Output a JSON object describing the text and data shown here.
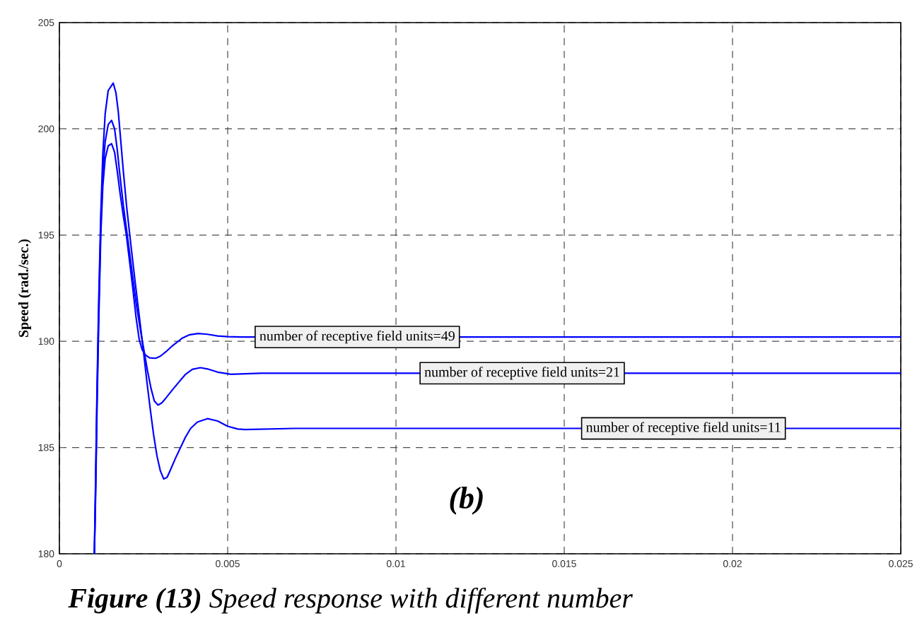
{
  "chart_data": {
    "type": "line",
    "ylabel": "Speed (rad./sec.)",
    "xlim": [
      0,
      0.025
    ],
    "ylim": [
      180,
      205
    ],
    "xticks": [
      0,
      0.005,
      0.01,
      0.015,
      0.02,
      0.025
    ],
    "yticks": [
      180,
      185,
      190,
      195,
      200,
      205
    ],
    "grid": true,
    "series": [
      {
        "color": "#0000ff",
        "x": [
          0.00104,
          0.00108,
          0.00112,
          0.00117,
          0.00123,
          0.00129,
          0.00136,
          0.00145,
          0.00155,
          0.00164,
          0.00172,
          0.0018,
          0.0019,
          0.00199,
          0.00209,
          0.00218,
          0.00228,
          0.00237,
          0.00246,
          0.00256,
          0.00268,
          0.00286,
          0.003,
          0.00316,
          0.00333,
          0.00349,
          0.00365,
          0.00385,
          0.00412,
          0.0044,
          0.0047,
          0.005,
          0.0054,
          0.025
        ],
        "values": [
          180.0,
          183.0,
          187.0,
          191.0,
          195.0,
          197.3,
          198.6,
          199.2,
          199.3,
          198.9,
          198.0,
          197.0,
          195.9,
          195.0,
          193.7,
          192.5,
          191.1,
          190.1,
          189.6,
          189.35,
          189.22,
          189.2,
          189.3,
          189.5,
          189.75,
          189.95,
          190.15,
          190.3,
          190.37,
          190.33,
          190.25,
          190.22,
          190.2,
          190.2
        ]
      },
      {
        "color": "#0000ff",
        "x": [
          0.00104,
          0.00108,
          0.00112,
          0.00117,
          0.00123,
          0.00129,
          0.00136,
          0.00145,
          0.00155,
          0.00164,
          0.00172,
          0.0018,
          0.0019,
          0.00205,
          0.00218,
          0.00228,
          0.0024,
          0.00251,
          0.00262,
          0.00272,
          0.00282,
          0.00293,
          0.00304,
          0.00315,
          0.00335,
          0.00356,
          0.00375,
          0.00395,
          0.00419,
          0.0044,
          0.0047,
          0.0051,
          0.006,
          0.025
        ],
        "values": [
          180.0,
          183.5,
          187.5,
          191.5,
          195.5,
          197.9,
          199.4,
          200.2,
          200.4,
          200.0,
          199.0,
          197.8,
          196.4,
          194.6,
          193.0,
          191.8,
          190.6,
          189.6,
          188.6,
          187.8,
          187.2,
          187.0,
          187.1,
          187.3,
          187.7,
          188.1,
          188.45,
          188.68,
          188.76,
          188.7,
          188.55,
          188.45,
          188.5,
          188.5
        ]
      },
      {
        "color": "#0000ff",
        "x": [
          0.00104,
          0.00108,
          0.00112,
          0.00117,
          0.00123,
          0.00129,
          0.00136,
          0.00145,
          0.0016,
          0.00168,
          0.00175,
          0.00182,
          0.0019,
          0.002,
          0.00212,
          0.00225,
          0.00238,
          0.0025,
          0.0026,
          0.0027,
          0.0028,
          0.0029,
          0.003,
          0.0031,
          0.0032,
          0.0033,
          0.00345,
          0.0036,
          0.00375,
          0.0039,
          0.0041,
          0.0044,
          0.0047,
          0.005,
          0.0053,
          0.00552,
          0.007,
          0.025
        ],
        "values": [
          180.0,
          184.0,
          188.0,
          192.0,
          196.0,
          198.8,
          200.7,
          201.8,
          202.15,
          201.7,
          200.8,
          199.5,
          198.0,
          196.3,
          194.6,
          192.8,
          191.1,
          189.5,
          188.1,
          186.8,
          185.6,
          184.6,
          183.9,
          183.52,
          183.6,
          183.95,
          184.5,
          185.0,
          185.5,
          185.9,
          186.2,
          186.36,
          186.25,
          186.0,
          185.87,
          185.85,
          185.9,
          185.9
        ]
      }
    ],
    "annotations": [
      {
        "text": "number of receptive field units=49",
        "x": 0.0058,
        "y": 190.2
      },
      {
        "text": "number of receptive field units=21",
        "x": 0.0107,
        "y": 188.5
      },
      {
        "text": "number of receptive field units=11",
        "x": 0.0155,
        "y": 185.9
      },
      "(b)",
      "**Figure (13)** Speed response with different number"
    ]
  }
}
